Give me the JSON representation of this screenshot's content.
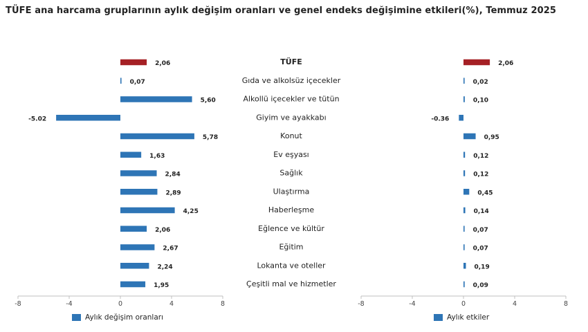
{
  "title": "TÜFE ana harcama gruplarının aylık değişim oranları ve genel endeks değişimine etkileri(%), Temmuz 2025",
  "colors": {
    "highlight": "#a52025",
    "bar": "#2e75b6"
  },
  "chart_data": [
    {
      "type": "bar",
      "orientation": "horizontal",
      "legend": "Aylık değişim oranları",
      "legend_position": "bottom-left",
      "categories": [
        "TÜFE",
        "Gıda ve alkolsüz içecekler",
        "Alkollü içecekler ve tütün",
        "Giyim ve ayakkabı",
        "Konut",
        "Ev eşyası",
        "Sağlık",
        "Ulaştırma",
        "Haberleşme",
        "Eğlence ve kültür",
        "Eğitim",
        "Lokanta ve oteller",
        "Çeşitli mal ve hizmetler"
      ],
      "values": [
        2.06,
        0.07,
        5.6,
        -5.02,
        5.78,
        1.63,
        2.84,
        2.89,
        4.25,
        2.06,
        2.67,
        2.24,
        1.95
      ],
      "value_labels": [
        "2,06",
        "0,07",
        "5,60",
        "-5.02",
        "5,78",
        "1,63",
        "2,84",
        "2,89",
        "4,25",
        "2,06",
        "2,67",
        "2,24",
        "1,95"
      ],
      "xlim": [
        -8,
        8
      ],
      "ticks": [
        -8,
        -4,
        0,
        4,
        8
      ],
      "tick_labels": [
        "-8",
        "-4",
        "0",
        "4",
        "8"
      ],
      "grid": false
    },
    {
      "type": "bar",
      "orientation": "horizontal",
      "legend": "Aylık etkiler",
      "legend_position": "bottom-left",
      "categories": [
        "TÜFE",
        "Gıda ve alkolsüz içecekler",
        "Alkollü içecekler ve tütün",
        "Giyim ve ayakkabı",
        "Konut",
        "Ev eşyası",
        "Sağlık",
        "Ulaştırma",
        "Haberleşme",
        "Eğlence ve kültür",
        "Eğitim",
        "Lokanta ve oteller",
        "Çeşitli mal ve hizmetler"
      ],
      "values": [
        2.06,
        0.02,
        0.1,
        -0.36,
        0.95,
        0.12,
        0.12,
        0.45,
        0.14,
        0.07,
        0.07,
        0.19,
        0.09
      ],
      "value_labels": [
        "2,06",
        "0,02",
        "0,10",
        "-0.36",
        "0,95",
        "0,12",
        "0,12",
        "0,45",
        "0,14",
        "0,07",
        "0,07",
        "0,19",
        "0,09"
      ],
      "xlim": [
        -8,
        8
      ],
      "ticks": [
        -8,
        -4,
        0,
        4,
        8
      ],
      "tick_labels": [
        "-8",
        "-4",
        "0",
        "4",
        "8"
      ],
      "grid": false
    }
  ]
}
